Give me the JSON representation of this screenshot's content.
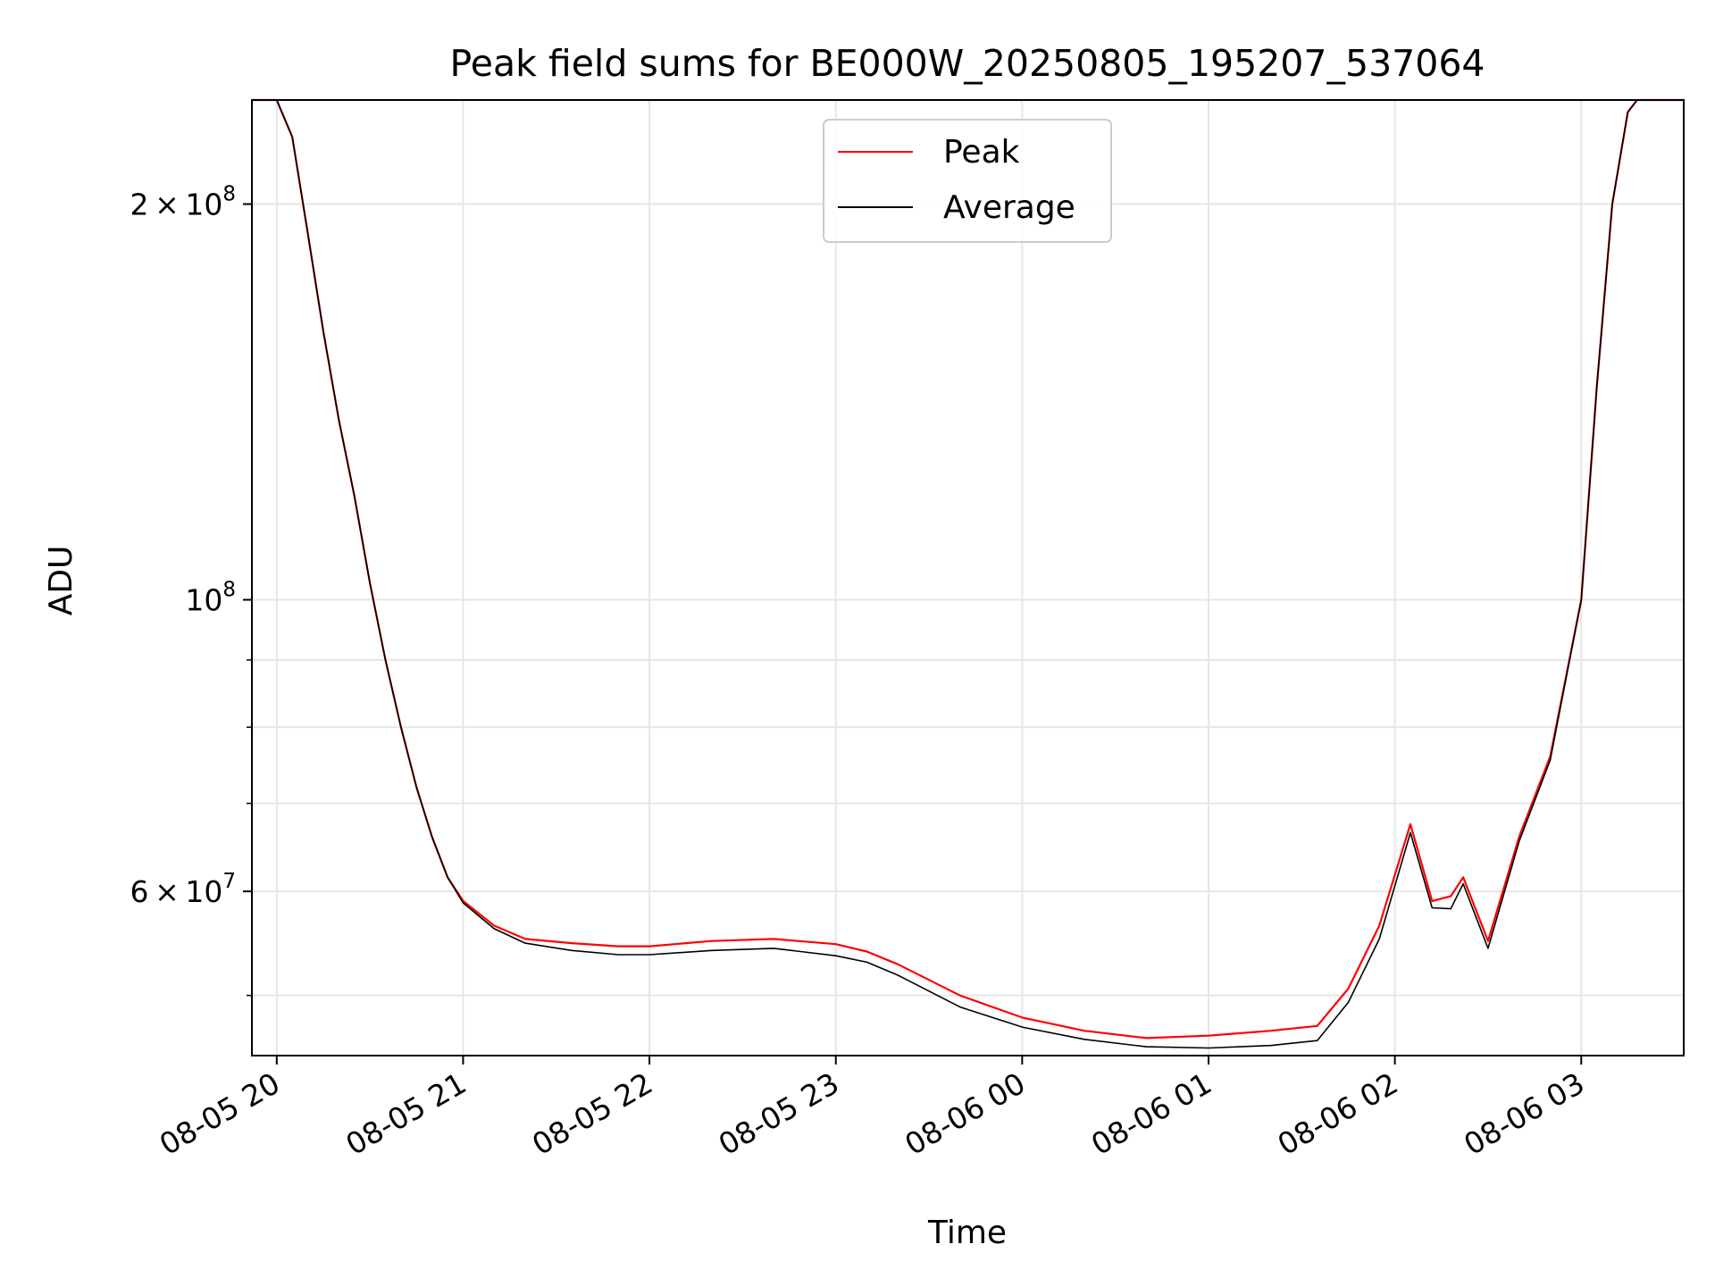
{
  "chart_data": {
    "type": "line",
    "title": "Peak field sums for BE000W_20250805_195207_537064",
    "xlabel": "Time",
    "ylabel": "ADU",
    "y_scale": "log",
    "ylim": [
      45000000,
      240000000
    ],
    "xlim": [
      "2025-08-05 19:52",
      "2025-08-06 03:33"
    ],
    "grid": true,
    "legend_position": "upper center",
    "x_ticks": [
      {
        "value": "2025-08-05 20:00",
        "label": "08-05 20"
      },
      {
        "value": "2025-08-05 21:00",
        "label": "08-05 21"
      },
      {
        "value": "2025-08-05 22:00",
        "label": "08-05 22"
      },
      {
        "value": "2025-08-05 23:00",
        "label": "08-05 23"
      },
      {
        "value": "2025-08-06 00:00",
        "label": "08-06 00"
      },
      {
        "value": "2025-08-06 01:00",
        "label": "08-06 01"
      },
      {
        "value": "2025-08-06 02:00",
        "label": "08-06 02"
      },
      {
        "value": "2025-08-06 03:00",
        "label": "08-06 03"
      }
    ],
    "y_ticks": [
      {
        "value": 200000000,
        "base": "2",
        "exp": "8"
      },
      {
        "value": 100000000,
        "base": "",
        "exp": "8"
      },
      {
        "value": 60000000,
        "base": "6",
        "exp": "7"
      }
    ],
    "y_minor_ticks": [
      50000000,
      70000000,
      80000000,
      90000000
    ],
    "series": [
      {
        "name": "Peak",
        "color": "#ff0000",
        "points": [
          [
            "2025-08-05 19:52",
            240000000
          ],
          [
            "2025-08-05 20:00",
            240000000
          ],
          [
            "2025-08-05 20:05",
            225000000
          ],
          [
            "2025-08-05 20:10",
            190000000
          ],
          [
            "2025-08-05 20:15",
            160000000
          ],
          [
            "2025-08-05 20:20",
            137000000
          ],
          [
            "2025-08-05 20:25",
            120000000
          ],
          [
            "2025-08-05 20:30",
            103000000
          ],
          [
            "2025-08-05 20:35",
            90000000
          ],
          [
            "2025-08-05 20:40",
            80000000
          ],
          [
            "2025-08-05 20:45",
            72000000
          ],
          [
            "2025-08-05 20:50",
            66000000
          ],
          [
            "2025-08-05 20:55",
            61500000
          ],
          [
            "2025-08-05 21:00",
            59000000
          ],
          [
            "2025-08-05 21:10",
            56500000
          ],
          [
            "2025-08-05 21:20",
            55200000
          ],
          [
            "2025-08-05 21:35",
            54800000
          ],
          [
            "2025-08-05 21:50",
            54500000
          ],
          [
            "2025-08-05 22:00",
            54500000
          ],
          [
            "2025-08-05 22:20",
            55000000
          ],
          [
            "2025-08-05 22:40",
            55200000
          ],
          [
            "2025-08-05 23:00",
            54700000
          ],
          [
            "2025-08-05 23:10",
            54000000
          ],
          [
            "2025-08-05 23:20",
            52800000
          ],
          [
            "2025-08-05 23:40",
            50000000
          ],
          [
            "2025-08-06 00:00",
            48100000
          ],
          [
            "2025-08-06 00:20",
            47000000
          ],
          [
            "2025-08-06 00:40",
            46400000
          ],
          [
            "2025-08-06 01:00",
            46600000
          ],
          [
            "2025-08-06 01:20",
            47000000
          ],
          [
            "2025-08-06 01:35",
            47400000
          ],
          [
            "2025-08-06 01:45",
            50600000
          ],
          [
            "2025-08-06 01:55",
            56500000
          ],
          [
            "2025-08-06 02:05",
            67500000
          ],
          [
            "2025-08-06 02:12",
            59000000
          ],
          [
            "2025-08-06 02:18",
            59500000
          ],
          [
            "2025-08-06 02:22",
            61500000
          ],
          [
            "2025-08-06 02:30",
            55000000
          ],
          [
            "2025-08-06 02:40",
            66000000
          ],
          [
            "2025-08-06 02:50",
            76000000
          ],
          [
            "2025-08-06 03:00",
            100000000
          ],
          [
            "2025-08-06 03:05",
            145000000
          ],
          [
            "2025-08-06 03:10",
            200000000
          ],
          [
            "2025-08-06 03:15",
            235000000
          ],
          [
            "2025-08-06 03:18",
            240000000
          ],
          [
            "2025-08-06 03:33",
            240000000
          ]
        ]
      },
      {
        "name": "Average",
        "color": "#000000",
        "points": [
          [
            "2025-08-05 19:52",
            240000000
          ],
          [
            "2025-08-05 20:00",
            240000000
          ],
          [
            "2025-08-05 20:05",
            225000000
          ],
          [
            "2025-08-05 20:10",
            190000000
          ],
          [
            "2025-08-05 20:15",
            160000000
          ],
          [
            "2025-08-05 20:20",
            137000000
          ],
          [
            "2025-08-05 20:25",
            120000000
          ],
          [
            "2025-08-05 20:30",
            103000000
          ],
          [
            "2025-08-05 20:35",
            90000000
          ],
          [
            "2025-08-05 20:40",
            80000000
          ],
          [
            "2025-08-05 20:45",
            72000000
          ],
          [
            "2025-08-05 20:50",
            66000000
          ],
          [
            "2025-08-05 20:55",
            61500000
          ],
          [
            "2025-08-05 21:00",
            58800000
          ],
          [
            "2025-08-05 21:10",
            56200000
          ],
          [
            "2025-08-05 21:20",
            54800000
          ],
          [
            "2025-08-05 21:35",
            54100000
          ],
          [
            "2025-08-05 21:50",
            53700000
          ],
          [
            "2025-08-05 22:00",
            53700000
          ],
          [
            "2025-08-05 22:20",
            54100000
          ],
          [
            "2025-08-05 22:40",
            54300000
          ],
          [
            "2025-08-05 23:00",
            53600000
          ],
          [
            "2025-08-05 23:10",
            53000000
          ],
          [
            "2025-08-05 23:20",
            51800000
          ],
          [
            "2025-08-05 23:40",
            49000000
          ],
          [
            "2025-08-06 00:00",
            47300000
          ],
          [
            "2025-08-06 00:20",
            46300000
          ],
          [
            "2025-08-06 00:40",
            45700000
          ],
          [
            "2025-08-06 01:00",
            45600000
          ],
          [
            "2025-08-06 01:20",
            45800000
          ],
          [
            "2025-08-06 01:35",
            46200000
          ],
          [
            "2025-08-06 01:45",
            49400000
          ],
          [
            "2025-08-06 01:55",
            55200000
          ],
          [
            "2025-08-06 02:05",
            66500000
          ],
          [
            "2025-08-06 02:12",
            58300000
          ],
          [
            "2025-08-06 02:18",
            58200000
          ],
          [
            "2025-08-06 02:22",
            60800000
          ],
          [
            "2025-08-06 02:30",
            54300000
          ],
          [
            "2025-08-06 02:40",
            65500000
          ],
          [
            "2025-08-06 02:50",
            75500000
          ],
          [
            "2025-08-06 03:00",
            100000000
          ],
          [
            "2025-08-06 03:05",
            145000000
          ],
          [
            "2025-08-06 03:10",
            200000000
          ],
          [
            "2025-08-06 03:15",
            235000000
          ],
          [
            "2025-08-06 03:18",
            240000000
          ],
          [
            "2025-08-06 03:33",
            240000000
          ]
        ]
      }
    ]
  }
}
